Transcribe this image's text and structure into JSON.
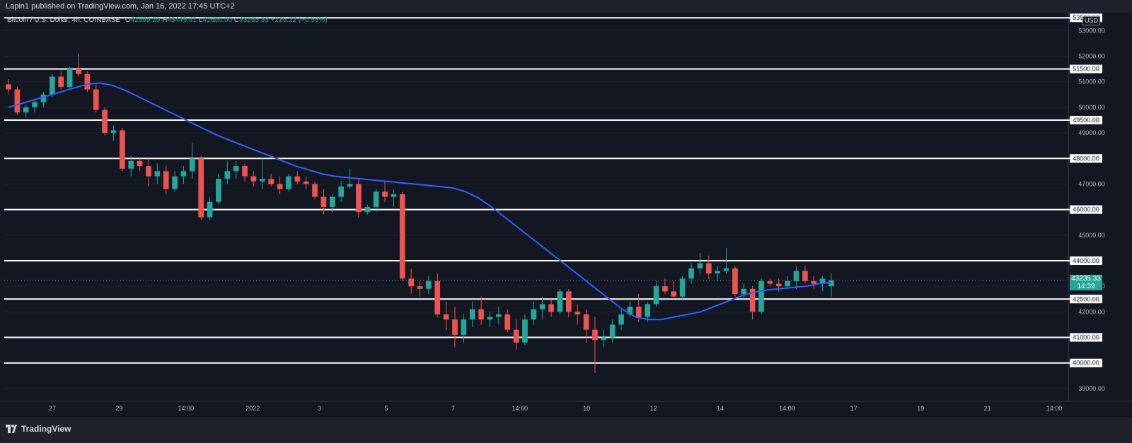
{
  "header": {
    "publish_text": "Lapin1 published on TradingView.com, Jan 16, 2022 17:45 UTC+2"
  },
  "legend": {
    "symbol": "Bitcoin / U.S. Dollar, 4h, COINBASE",
    "o_label": "O",
    "o_value": "42999.29",
    "h_label": "H",
    "h_value": "43449.41",
    "l_label": "L",
    "l_value": "42600.00",
    "c_label": "C",
    "c_value": "43235.33",
    "change": "+235.22 (+0.55%)"
  },
  "price_scale": {
    "currency": "USD",
    "current_price": "43235.33",
    "countdown": "14:39",
    "top_level_label": "53500.00",
    "labels": [
      "53000.00",
      "52000.00",
      "51000.00",
      "50000.00",
      "49000.00",
      "47000.00",
      "45000.00",
      "43000.00",
      "42000.00",
      "39000.00"
    ],
    "level_labels": [
      "51500.00",
      "49500.00",
      "48000.00",
      "46000.00",
      "44000.00",
      "42500.00",
      "41000.00",
      "40000.00"
    ]
  },
  "time_axis": {
    "labels": [
      "27",
      "29",
      "14:00",
      "2022",
      "3",
      "5",
      "7",
      "14:00",
      "10",
      "12",
      "14",
      "14:00",
      "17",
      "19",
      "21",
      "14:00"
    ]
  },
  "footer": {
    "brand": "TradingView"
  },
  "colors": {
    "background": "#131722",
    "up": "#26a69a",
    "down": "#ef5350",
    "ma": "#2962ff",
    "level_line": "#ffffff",
    "grid": "#1f2330"
  },
  "chart_data": {
    "type": "candlestick",
    "interval": "4h",
    "ylim": [
      38500,
      53700
    ],
    "horizontal_levels": [
      53500,
      51500,
      49500,
      48000,
      46000,
      44000,
      42500,
      41000,
      40000
    ],
    "ma_series": [
      50000,
      50150,
      50300,
      50450,
      50600,
      50750,
      50900,
      50950,
      50850,
      50650,
      50400,
      50150,
      49900,
      49650,
      49400,
      49150,
      48900,
      48700,
      48500,
      48300,
      48100,
      47900,
      47700,
      47550,
      47400,
      47300,
      47250,
      47200,
      47150,
      47100,
      47050,
      47000,
      46950,
      46900,
      46850,
      46700,
      46450,
      46100,
      45700,
      45300,
      44900,
      44500,
      44100,
      43700,
      43300,
      42900,
      42500,
      42100,
      41800,
      41700,
      41700,
      41800,
      41900,
      42000,
      42200,
      42400,
      42600,
      42750,
      42850,
      42900,
      42950,
      43000,
      43100,
      43150
    ],
    "candles": [
      [
        50900,
        51100,
        50500,
        50700
      ],
      [
        50700,
        50800,
        49700,
        49800
      ],
      [
        49800,
        50100,
        49600,
        50000
      ],
      [
        50000,
        50300,
        49800,
        50200
      ],
      [
        50200,
        50600,
        50000,
        50500
      ],
      [
        50500,
        51300,
        50400,
        51200
      ],
      [
        51200,
        51400,
        50700,
        50800
      ],
      [
        50800,
        51600,
        50700,
        51500
      ],
      [
        51500,
        52100,
        51200,
        51300
      ],
      [
        51300,
        51400,
        50600,
        50700
      ],
      [
        50700,
        50900,
        49800,
        49900
      ],
      [
        49900,
        50000,
        48900,
        49000
      ],
      [
        49000,
        49300,
        48700,
        49100
      ],
      [
        49100,
        49200,
        47500,
        47600
      ],
      [
        47600,
        48100,
        47300,
        47900
      ],
      [
        47900,
        48000,
        47500,
        47700
      ],
      [
        47700,
        48000,
        46900,
        47300
      ],
      [
        47300,
        47800,
        47000,
        47500
      ],
      [
        47500,
        47700,
        46600,
        46800
      ],
      [
        46800,
        47500,
        46700,
        47300
      ],
      [
        47300,
        47700,
        47000,
        47500
      ],
      [
        47500,
        48600,
        47200,
        48000
      ],
      [
        48000,
        48100,
        45600,
        45700
      ],
      [
        45700,
        46500,
        45600,
        46300
      ],
      [
        46300,
        47400,
        46200,
        47200
      ],
      [
        47200,
        47900,
        47000,
        47500
      ],
      [
        47500,
        47900,
        47200,
        47700
      ],
      [
        47700,
        47800,
        47100,
        47300
      ],
      [
        47300,
        47500,
        46900,
        47100
      ],
      [
        47100,
        48000,
        46800,
        47200
      ],
      [
        47200,
        47400,
        46900,
        47000
      ],
      [
        47000,
        47300,
        46600,
        46800
      ],
      [
        46800,
        47400,
        46700,
        47300
      ],
      [
        47300,
        47500,
        47000,
        47100
      ],
      [
        47100,
        47300,
        46800,
        47000
      ],
      [
        47000,
        47100,
        46400,
        46500
      ],
      [
        46500,
        46800,
        45800,
        46100
      ],
      [
        46100,
        46600,
        45900,
        46500
      ],
      [
        46500,
        47100,
        46300,
        46900
      ],
      [
        46900,
        47600,
        46800,
        47000
      ],
      [
        47000,
        47200,
        45700,
        45900
      ],
      [
        45900,
        46200,
        45800,
        46100
      ],
      [
        46100,
        46800,
        45900,
        46700
      ],
      [
        46700,
        47100,
        46300,
        46500
      ],
      [
        46500,
        46800,
        46100,
        46600
      ],
      [
        46600,
        46700,
        43200,
        43300
      ],
      [
        43300,
        43700,
        42700,
        43000
      ],
      [
        43000,
        43200,
        42600,
        42900
      ],
      [
        42900,
        43400,
        42700,
        43200
      ],
      [
        43200,
        43500,
        41800,
        41900
      ],
      [
        41900,
        42400,
        41300,
        41700
      ],
      [
        41700,
        42200,
        40600,
        41100
      ],
      [
        41100,
        41900,
        40800,
        41700
      ],
      [
        41700,
        42400,
        41400,
        42100
      ],
      [
        42100,
        42600,
        41500,
        41700
      ],
      [
        41700,
        42000,
        41400,
        41800
      ],
      [
        41800,
        42200,
        41500,
        41900
      ],
      [
        41900,
        42100,
        41200,
        41300
      ],
      [
        41300,
        41700,
        40500,
        40800
      ],
      [
        40800,
        41900,
        40700,
        41700
      ],
      [
        41700,
        42400,
        41500,
        42100
      ],
      [
        42100,
        42600,
        41700,
        42300
      ],
      [
        42300,
        42500,
        41800,
        42000
      ],
      [
        42000,
        42900,
        41900,
        42800
      ],
      [
        42800,
        42900,
        41800,
        42000
      ],
      [
        42000,
        42300,
        41500,
        41900
      ],
      [
        41900,
        42100,
        40800,
        41300
      ],
      [
        41300,
        41800,
        39600,
        40900
      ],
      [
        40900,
        41300,
        40600,
        41000
      ],
      [
        41000,
        41700,
        40800,
        41500
      ],
      [
        41500,
        42100,
        41300,
        41900
      ],
      [
        41900,
        42400,
        41800,
        42200
      ],
      [
        42200,
        42700,
        41600,
        41800
      ],
      [
        41800,
        42400,
        41600,
        42300
      ],
      [
        42300,
        43200,
        42200,
        43000
      ],
      [
        43000,
        43300,
        42700,
        42800
      ],
      [
        42800,
        43200,
        42500,
        42600
      ],
      [
        42600,
        43400,
        42500,
        43300
      ],
      [
        43300,
        43900,
        43100,
        43700
      ],
      [
        43700,
        44300,
        43500,
        43900
      ],
      [
        43900,
        44200,
        43300,
        43500
      ],
      [
        43500,
        43800,
        43200,
        43600
      ],
      [
        43600,
        44500,
        43500,
        43700
      ],
      [
        43700,
        43800,
        42600,
        42700
      ],
      [
        42700,
        43100,
        42500,
        42900
      ],
      [
        42900,
        43000,
        41700,
        42000
      ],
      [
        42000,
        43300,
        41900,
        43200
      ],
      [
        43200,
        43300,
        43000,
        43100
      ],
      [
        43100,
        43300,
        42800,
        43000
      ],
      [
        43000,
        43400,
        42900,
        43200
      ],
      [
        43200,
        43800,
        42900,
        43600
      ],
      [
        43600,
        43800,
        43100,
        43200
      ],
      [
        43200,
        43400,
        42900,
        43100
      ],
      [
        43100,
        43400,
        42800,
        43300
      ],
      [
        43000,
        43500,
        42600,
        43235
      ]
    ]
  }
}
